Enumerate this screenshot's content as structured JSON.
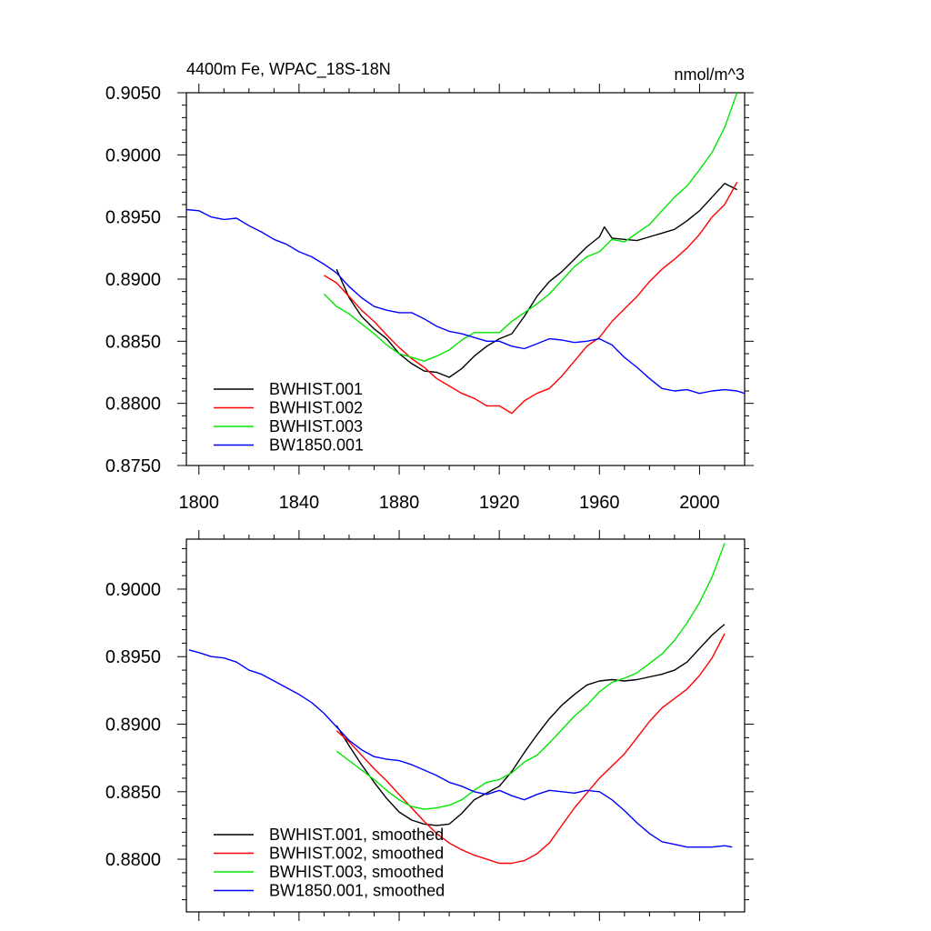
{
  "chart_data": [
    {
      "type": "line",
      "title_left": "4400m Fe, WPAC_18S-18N",
      "title_right": "nmol/m^3",
      "xlim": [
        1795,
        2018
      ],
      "ylim": [
        0.875,
        0.905
      ],
      "x_ticks": [
        1800,
        1840,
        1880,
        1920,
        1960,
        2000
      ],
      "x_tick_labels": [
        "1800",
        "1840",
        "1880",
        "1920",
        "1960",
        "2000"
      ],
      "y_ticks": [
        0.875,
        0.88,
        0.885,
        0.89,
        0.895,
        0.9,
        0.905
      ],
      "y_tick_labels": [
        "0.8750",
        "0.8800",
        "0.8850",
        "0.8900",
        "0.8950",
        "0.9000",
        "0.9050"
      ],
      "legend_position": "bottom-left",
      "series": [
        {
          "name": "BWHIST.001",
          "color": "#000000",
          "x": [
            1855,
            1860,
            1865,
            1870,
            1875,
            1880,
            1885,
            1890,
            1895,
            1900,
            1905,
            1910,
            1915,
            1920,
            1925,
            1930,
            1935,
            1940,
            1945,
            1950,
            1955,
            1960,
            1962,
            1965,
            1970,
            1975,
            1980,
            1985,
            1990,
            1995,
            2000,
            2005,
            2010,
            2015
          ],
          "values": [
            0.8908,
            0.8885,
            0.887,
            0.886,
            0.8852,
            0.884,
            0.8832,
            0.8826,
            0.8825,
            0.8821,
            0.8828,
            0.8838,
            0.8846,
            0.8852,
            0.8856,
            0.887,
            0.8886,
            0.8898,
            0.8906,
            0.8916,
            0.8926,
            0.8934,
            0.8942,
            0.8933,
            0.8932,
            0.8931,
            0.8934,
            0.8937,
            0.894,
            0.8947,
            0.8955,
            0.8966,
            0.8977,
            0.8972
          ]
        },
        {
          "name": "BWHIST.002",
          "color": "#ff0000",
          "x": [
            1850,
            1855,
            1860,
            1865,
            1870,
            1875,
            1880,
            1885,
            1890,
            1895,
            1900,
            1905,
            1910,
            1915,
            1920,
            1925,
            1930,
            1935,
            1940,
            1945,
            1950,
            1955,
            1960,
            1965,
            1970,
            1975,
            1980,
            1985,
            1990,
            1995,
            2000,
            2005,
            2010,
            2015
          ],
          "values": [
            0.8903,
            0.8897,
            0.8886,
            0.8875,
            0.8866,
            0.8855,
            0.8845,
            0.8836,
            0.8829,
            0.882,
            0.8814,
            0.8808,
            0.8804,
            0.8798,
            0.8798,
            0.8792,
            0.8802,
            0.8808,
            0.8812,
            0.8822,
            0.8834,
            0.8846,
            0.8853,
            0.8866,
            0.8876,
            0.8886,
            0.8898,
            0.8908,
            0.8916,
            0.8925,
            0.8936,
            0.895,
            0.896,
            0.8978
          ]
        },
        {
          "name": "BWHIST.003",
          "color": "#00e600",
          "x": [
            1850,
            1855,
            1860,
            1865,
            1870,
            1875,
            1880,
            1885,
            1890,
            1895,
            1900,
            1905,
            1910,
            1915,
            1920,
            1925,
            1930,
            1935,
            1940,
            1945,
            1950,
            1955,
            1960,
            1965,
            1970,
            1975,
            1980,
            1985,
            1990,
            1995,
            2000,
            2005,
            2010,
            2015
          ],
          "values": [
            0.8888,
            0.8878,
            0.8872,
            0.8864,
            0.8856,
            0.8847,
            0.884,
            0.8837,
            0.8834,
            0.8838,
            0.8843,
            0.8851,
            0.8857,
            0.8857,
            0.8857,
            0.8866,
            0.8873,
            0.888,
            0.8888,
            0.8899,
            0.891,
            0.8918,
            0.8922,
            0.8932,
            0.893,
            0.8937,
            0.8944,
            0.8955,
            0.8966,
            0.8975,
            0.8988,
            0.9002,
            0.9022,
            0.905
          ]
        },
        {
          "name": "BW1850.001",
          "color": "#0000ff",
          "x": [
            1795,
            1800,
            1805,
            1810,
            1815,
            1820,
            1825,
            1830,
            1835,
            1840,
            1845,
            1850,
            1855,
            1860,
            1865,
            1870,
            1875,
            1880,
            1885,
            1890,
            1895,
            1900,
            1905,
            1910,
            1915,
            1920,
            1925,
            1930,
            1935,
            1940,
            1945,
            1950,
            1955,
            1960,
            1965,
            1970,
            1975,
            1980,
            1985,
            1990,
            1995,
            2000,
            2005,
            2010,
            2015,
            2018
          ],
          "values": [
            0.8956,
            0.8955,
            0.895,
            0.8948,
            0.8949,
            0.8943,
            0.8938,
            0.8932,
            0.8928,
            0.8922,
            0.8918,
            0.8912,
            0.8905,
            0.8894,
            0.8885,
            0.8878,
            0.8875,
            0.8873,
            0.8873,
            0.8868,
            0.8862,
            0.8858,
            0.8856,
            0.8853,
            0.885,
            0.885,
            0.8846,
            0.8844,
            0.8848,
            0.8852,
            0.8851,
            0.8849,
            0.885,
            0.8852,
            0.8847,
            0.8837,
            0.8829,
            0.882,
            0.8812,
            0.881,
            0.8811,
            0.8808,
            0.881,
            0.8811,
            0.881,
            0.8808
          ]
        }
      ]
    },
    {
      "type": "line",
      "xlim": [
        1795,
        2018
      ],
      "ylim": [
        0.8761,
        0.9037
      ],
      "x_ticks": [
        1800,
        1840,
        1880,
        1920,
        1960,
        2000
      ],
      "y_ticks": [
        0.88,
        0.885,
        0.89,
        0.895,
        0.9
      ],
      "y_tick_labels": [
        "0.8800",
        "0.8850",
        "0.8900",
        "0.8950",
        "0.9000"
      ],
      "legend_position": "bottom-left",
      "series": [
        {
          "name": "BWHIST.001, smoothed",
          "color": "#000000",
          "x": [
            1855,
            1860,
            1865,
            1870,
            1875,
            1880,
            1885,
            1890,
            1895,
            1900,
            1905,
            1910,
            1915,
            1920,
            1925,
            1930,
            1935,
            1940,
            1945,
            1950,
            1955,
            1960,
            1965,
            1970,
            1975,
            1980,
            1985,
            1990,
            1995,
            2000,
            2005,
            2010
          ],
          "values": [
            0.8899,
            0.8884,
            0.887,
            0.8857,
            0.8845,
            0.8835,
            0.8829,
            0.8826,
            0.8825,
            0.8826,
            0.8834,
            0.8844,
            0.8849,
            0.8854,
            0.8865,
            0.8879,
            0.8892,
            0.8904,
            0.8914,
            0.8922,
            0.8929,
            0.8932,
            0.8933,
            0.8932,
            0.8933,
            0.8935,
            0.8937,
            0.894,
            0.8946,
            0.8956,
            0.8966,
            0.8974
          ]
        },
        {
          "name": "BWHIST.002, smoothed",
          "color": "#ff0000",
          "x": [
            1855,
            1860,
            1865,
            1870,
            1875,
            1880,
            1885,
            1890,
            1895,
            1900,
            1905,
            1910,
            1915,
            1920,
            1925,
            1930,
            1935,
            1940,
            1945,
            1950,
            1955,
            1960,
            1965,
            1970,
            1975,
            1980,
            1985,
            1990,
            1995,
            2000,
            2005,
            2010
          ],
          "values": [
            0.8895,
            0.8887,
            0.8877,
            0.8867,
            0.8858,
            0.8848,
            0.8838,
            0.8828,
            0.8819,
            0.8812,
            0.8807,
            0.8803,
            0.88,
            0.8797,
            0.8797,
            0.8799,
            0.8804,
            0.8812,
            0.8825,
            0.8838,
            0.8849,
            0.886,
            0.8869,
            0.8878,
            0.889,
            0.8902,
            0.8912,
            0.8919,
            0.8926,
            0.8936,
            0.8949,
            0.8967
          ]
        },
        {
          "name": "BWHIST.003, smoothed",
          "color": "#00e600",
          "x": [
            1855,
            1860,
            1865,
            1870,
            1875,
            1880,
            1885,
            1890,
            1895,
            1900,
            1905,
            1910,
            1915,
            1920,
            1925,
            1930,
            1935,
            1940,
            1945,
            1950,
            1955,
            1960,
            1965,
            1970,
            1975,
            1980,
            1985,
            1990,
            1995,
            2000,
            2005,
            2010
          ],
          "values": [
            0.888,
            0.8873,
            0.8866,
            0.8859,
            0.8851,
            0.8844,
            0.8839,
            0.8837,
            0.8838,
            0.884,
            0.8844,
            0.8851,
            0.8857,
            0.8859,
            0.8864,
            0.8872,
            0.8877,
            0.8886,
            0.8896,
            0.8906,
            0.8914,
            0.8924,
            0.8931,
            0.8934,
            0.8938,
            0.8945,
            0.8952,
            0.8962,
            0.8975,
            0.899,
            0.9009,
            0.9034
          ]
        },
        {
          "name": "BW1850.001, smoothed",
          "color": "#0000ff",
          "x": [
            1796,
            1800,
            1805,
            1810,
            1815,
            1820,
            1825,
            1830,
            1835,
            1840,
            1845,
            1850,
            1855,
            1860,
            1865,
            1870,
            1875,
            1880,
            1885,
            1890,
            1895,
            1900,
            1905,
            1910,
            1915,
            1920,
            1925,
            1930,
            1935,
            1940,
            1945,
            1950,
            1955,
            1960,
            1965,
            1970,
            1975,
            1980,
            1985,
            1990,
            1995,
            2000,
            2005,
            2010,
            2013
          ],
          "values": [
            0.8955,
            0.8953,
            0.895,
            0.8949,
            0.8946,
            0.894,
            0.8937,
            0.8932,
            0.8927,
            0.8922,
            0.8916,
            0.8908,
            0.8898,
            0.8888,
            0.8881,
            0.8876,
            0.8874,
            0.8873,
            0.887,
            0.8866,
            0.8862,
            0.8857,
            0.8854,
            0.885,
            0.8848,
            0.8851,
            0.8847,
            0.8844,
            0.8848,
            0.8851,
            0.885,
            0.8849,
            0.8851,
            0.885,
            0.8844,
            0.8836,
            0.8827,
            0.8819,
            0.8813,
            0.8811,
            0.8809,
            0.8809,
            0.8809,
            0.881,
            0.8809
          ]
        }
      ]
    }
  ]
}
